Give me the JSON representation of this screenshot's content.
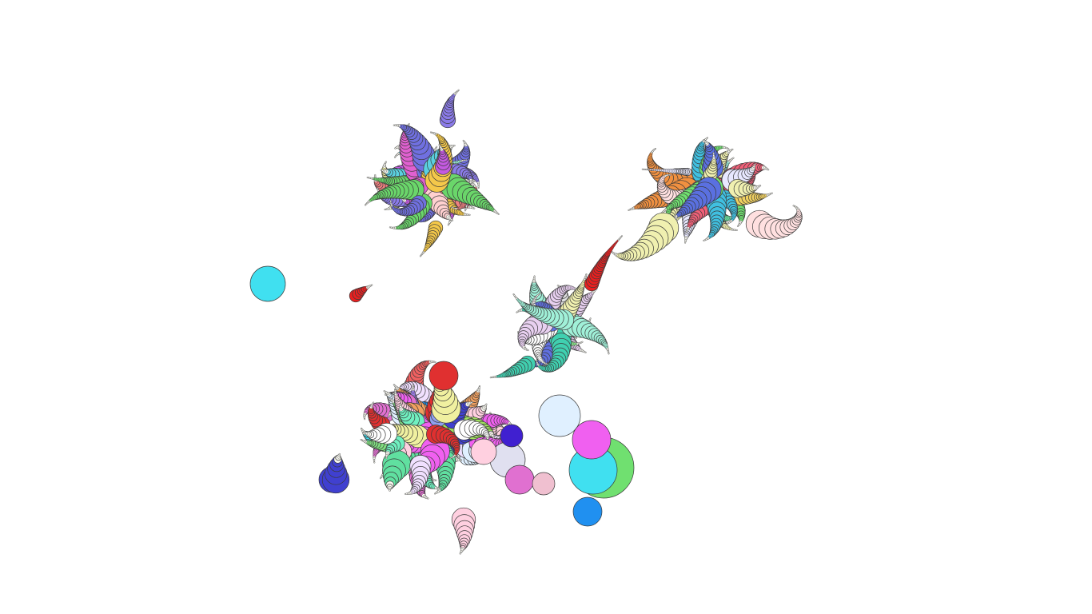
{
  "scene": {
    "background": "#ffffff",
    "outline_color": "#3a3a3a",
    "clusters": [
      {
        "name": "upper-left-cluster",
        "palette": [
          "#8b7bea",
          "#f4c84a",
          "#c45ae0",
          "#6ad66a",
          "#f08080",
          "#f0f0a0",
          "#9cf0d8",
          "#5ad0e0",
          "#e060d0",
          "#7070e0",
          "#b0f0b0",
          "#ffd0d0"
        ]
      },
      {
        "name": "upper-right-cluster",
        "palette": [
          "#f0f0b0",
          "#6ae0a0",
          "#f06078",
          "#e8e8ff",
          "#5a70e0",
          "#f09040",
          "#c060e0",
          "#9cf0e0",
          "#40c0e0",
          "#ffe0e0",
          "#f0d060",
          "#70e070"
        ]
      },
      {
        "name": "middle-cluster",
        "palette": [
          "#f06060",
          "#a0f0d8",
          "#6070e0",
          "#e8d0f0",
          "#40d0b0",
          "#f0f0b0",
          "#e0e0e0",
          "#e05050",
          "#90f090",
          "#ffffff"
        ]
      },
      {
        "name": "lower-left-cluster",
        "palette": [
          "#40e0f0",
          "#4040d0",
          "#f06060",
          "#f0a060",
          "#e070d0",
          "#a0e060",
          "#f0f0a0",
          "#ffffff",
          "#90a0f0",
          "#f0c0d0",
          "#60e0a0",
          "#e03030",
          "#f060f0",
          "#70f0c0",
          "#a080f0",
          "#ffd0e0",
          "#2090f0",
          "#f0e0ff",
          "#e0f0ff",
          "#80e080"
        ]
      }
    ]
  }
}
